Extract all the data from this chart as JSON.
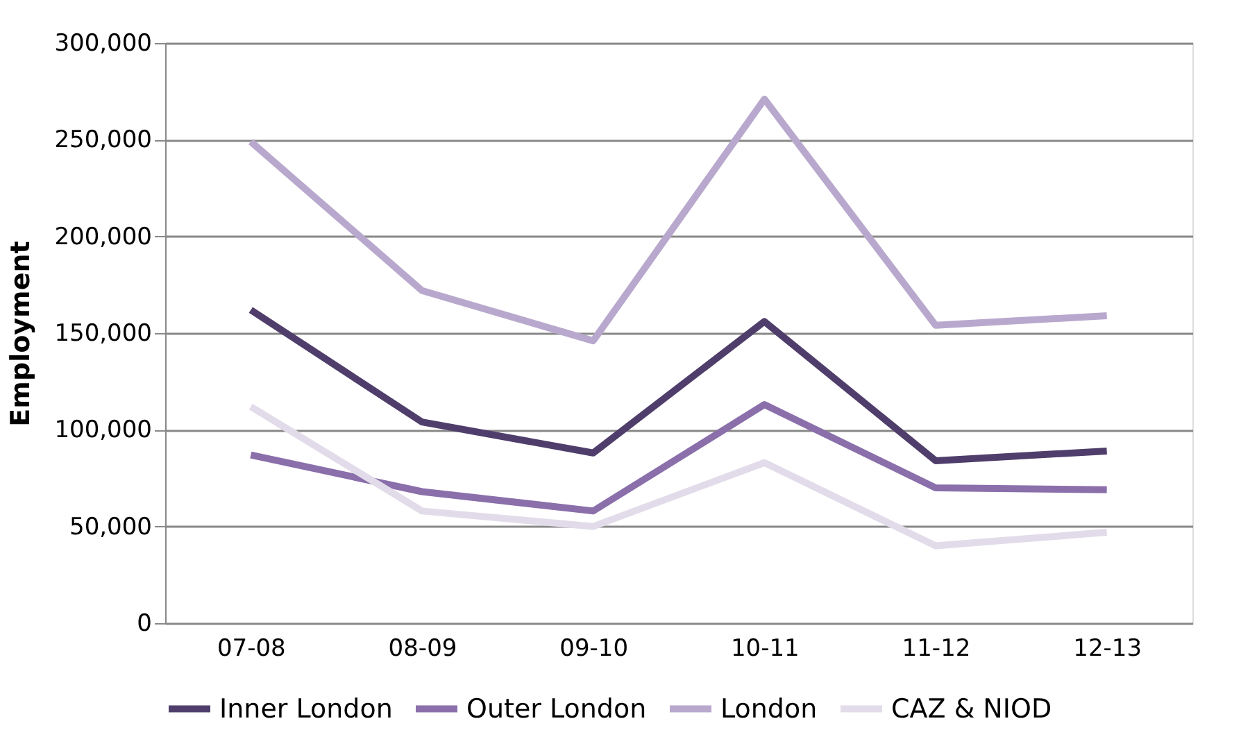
{
  "chart_data": {
    "type": "line",
    "ylabel": "Employment",
    "categories": [
      "07-08",
      "08-09",
      "09-10",
      "10-11",
      "11-12",
      "12-13"
    ],
    "series": [
      {
        "name": "Inner London",
        "color": "#4f3e6b",
        "values": [
          162000,
          104000,
          88000,
          156000,
          84000,
          89000
        ]
      },
      {
        "name": "Outer London",
        "color": "#8a6fab",
        "values": [
          87000,
          68000,
          58000,
          113000,
          70000,
          69000
        ]
      },
      {
        "name": "London",
        "color": "#b9a8cd",
        "values": [
          249000,
          172000,
          146000,
          271000,
          154000,
          159000
        ]
      },
      {
        "name": "CAZ & NIOD",
        "color": "#e2dcea",
        "values": [
          112000,
          58000,
          50000,
          83000,
          40000,
          47000
        ]
      }
    ],
    "ylim": [
      0,
      300000
    ],
    "yticks": [
      0,
      {
        "value": 50000,
        "label": "50,000"
      },
      {
        "value": 100000,
        "label": "100,000"
      },
      {
        "value": 150000,
        "label": "150,000"
      },
      {
        "value": 200000,
        "label": "200,000"
      },
      {
        "value": 250000,
        "label": "250,000"
      },
      {
        "value": 300000,
        "label": "300,000"
      }
    ],
    "grid": "y",
    "legend": "bottom",
    "marker": "none",
    "line_style": "solid"
  }
}
